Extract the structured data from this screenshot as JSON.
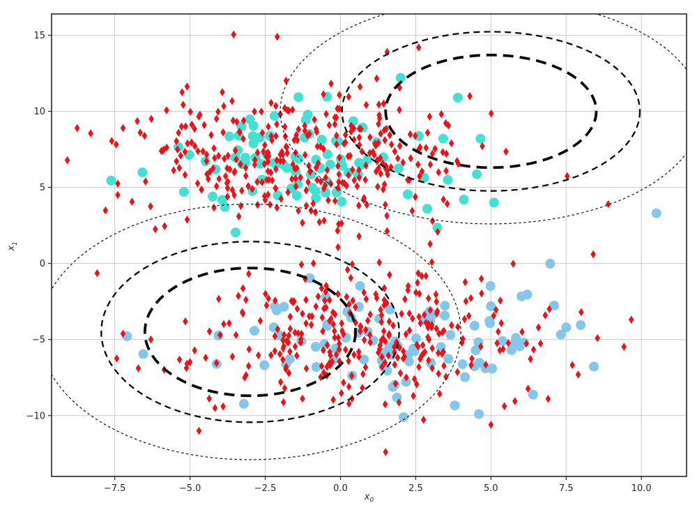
{
  "figure": {
    "background": "#ffffff"
  },
  "chart_data": {
    "type": "scatter",
    "title": "",
    "xlabel": {
      "base": "x",
      "sub": "0"
    },
    "ylabel": {
      "base": "x",
      "sub": "1"
    },
    "xlim": [
      -9.6,
      11.5
    ],
    "ylim": [
      -14.0,
      16.4
    ],
    "grid": true,
    "grid_color": "#c9c9c9",
    "axis_color": "#262626",
    "tick_label_color": "#262626",
    "xticks": {
      "values": [
        -7.5,
        -5.0,
        -2.5,
        0.0,
        2.5,
        5.0,
        7.5,
        10.0
      ],
      "labels": [
        "−7.5",
        "−5.0",
        "−2.5",
        "0.0",
        "2.5",
        "5.0",
        "7.5",
        "10.0"
      ]
    },
    "yticks": {
      "values": [
        15,
        10,
        5,
        0,
        -5,
        -10
      ],
      "labels": [
        "15",
        "10",
        "5",
        "0",
        "−5",
        "−10"
      ]
    },
    "series": [
      {
        "name": "cluster-upper-circles",
        "marker": "circle",
        "color": "#45e0d4",
        "count": 85,
        "mean": [
          -1.0,
          6.9
        ],
        "sigma": [
          2.4,
          1.8
        ],
        "seed": 303,
        "extra_points": [
          [
            3.9,
            10.9
          ],
          [
            2.0,
            12.2
          ],
          [
            4.1,
            4.2
          ],
          [
            -5.2,
            4.7
          ],
          [
            5.1,
            4.0
          ]
        ]
      },
      {
        "name": "cluster-lower-circles",
        "marker": "circle",
        "color": "#84c7e8",
        "count": 90,
        "mean": [
          1.7,
          -5.0
        ],
        "sigma": [
          2.9,
          2.2
        ],
        "seed": 404,
        "extra_points": [
          [
            10.5,
            3.3
          ],
          [
            7.5,
            -4.2
          ],
          [
            5.8,
            -5.2
          ],
          [
            6.1,
            -5.2
          ],
          [
            4.6,
            -9.9
          ],
          [
            2.1,
            -10.1
          ]
        ]
      },
      {
        "name": "samples-upper-diamonds",
        "marker": "thin-diamond",
        "color": "#e8141c",
        "count": 330,
        "mean": [
          -1.2,
          6.9
        ],
        "sigma": [
          2.7,
          2.1
        ],
        "seed": 101,
        "extra_points": [
          [
            -8.75,
            8.9
          ],
          [
            -8.3,
            8.55
          ],
          [
            -3.55,
            15.05
          ],
          [
            -2.1,
            14.9
          ],
          [
            1.55,
            13.9
          ],
          [
            2.6,
            14.2
          ],
          [
            -7.4,
            4.5
          ],
          [
            5.5,
            7.35
          ],
          [
            4.3,
            11.0
          ],
          [
            8.9,
            3.9
          ],
          [
            8.4,
            0.6
          ]
        ]
      },
      {
        "name": "samples-lower-diamonds",
        "marker": "thin-diamond",
        "color": "#e8141c",
        "count": 300,
        "mean": [
          0.7,
          -4.6
        ],
        "sigma": [
          2.9,
          2.3
        ],
        "seed": 202,
        "extra_points": [
          [
            1.5,
            -12.4
          ],
          [
            -4.7,
            -11.0
          ],
          [
            7.9,
            -7.3
          ],
          [
            8.0,
            -3.2
          ],
          [
            -6.3,
            -5.0
          ],
          [
            5.0,
            -10.6
          ],
          [
            6.9,
            -8.9
          ],
          [
            -3.9,
            -9.4
          ],
          [
            -5.1,
            -6.6
          ]
        ]
      }
    ],
    "gaussian_components": [
      {
        "name": "component-upper",
        "center": [
          5.0,
          10.0
        ],
        "sigma": [
          3.5,
          3.7
        ]
      },
      {
        "name": "component-lower",
        "center": [
          -3.0,
          -4.5
        ],
        "sigma": [
          3.5,
          4.2
        ]
      }
    ],
    "contour_color": "#0a0a0a",
    "contour_levels": [
      {
        "level": 1.0,
        "stroke_width": 3.8,
        "dash": "15 9"
      },
      {
        "level": 1.414,
        "stroke_width": 2.3,
        "dash": "9 6"
      },
      {
        "level": 2.0,
        "stroke_width": 1.2,
        "dash": "3.5 3.5"
      }
    ],
    "marker_sizes": {
      "circle_radius": 7.0,
      "diamond_half_width": 3.8,
      "diamond_half_height": 5.8
    }
  }
}
